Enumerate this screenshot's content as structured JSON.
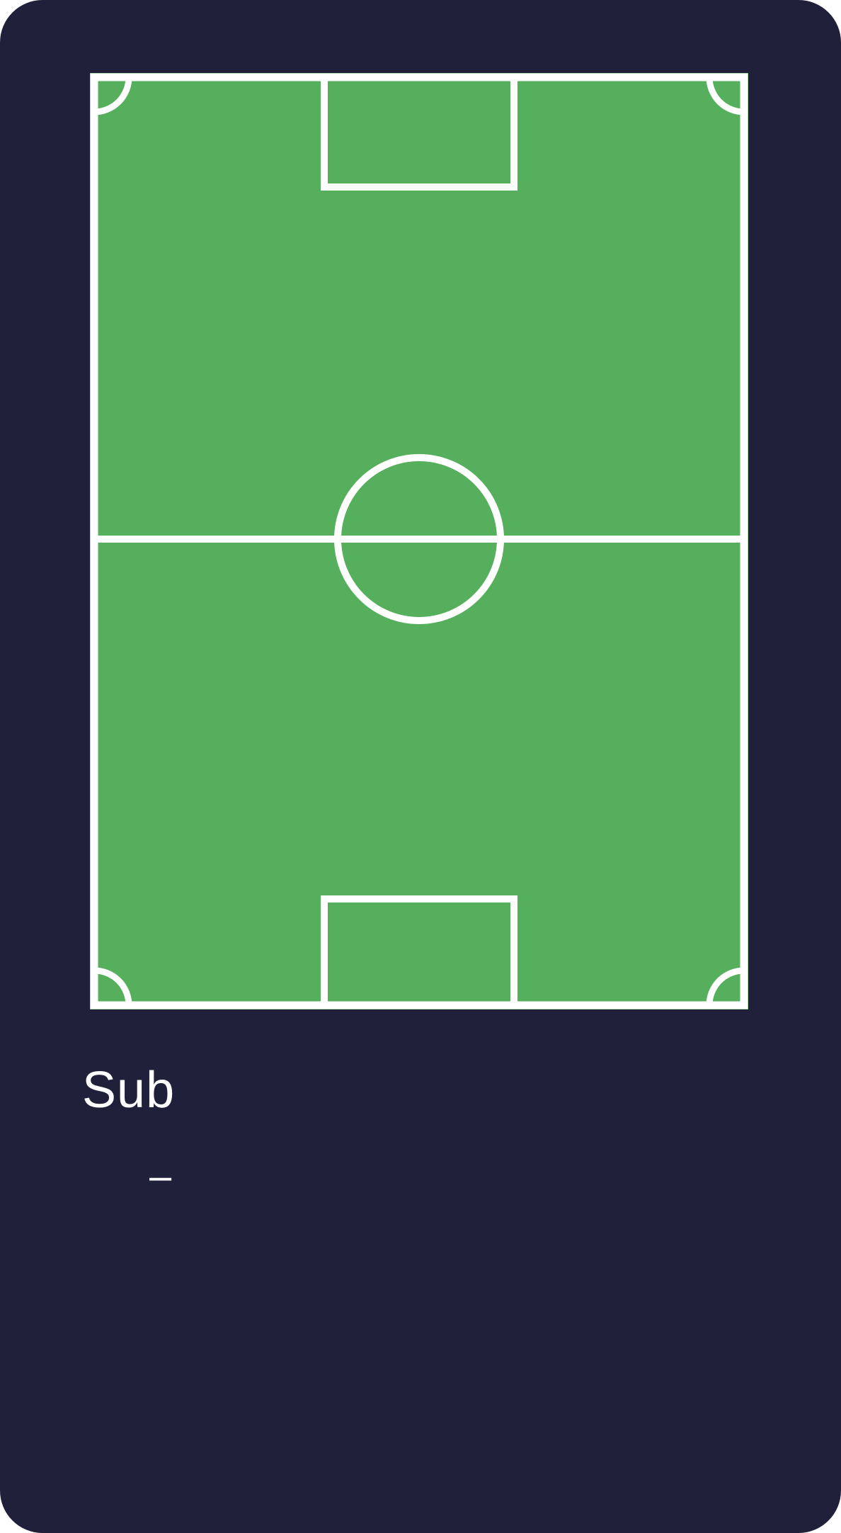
{
  "theme": {
    "background": "#21203b",
    "pitch_grass": "#55af5d",
    "pitch_lines": "#ffffff",
    "text": "#ffffff"
  },
  "pitch": {
    "icon": "soccer-pitch"
  },
  "subs": {
    "title": "Sub",
    "entries": [
      {
        "text": "–"
      }
    ]
  }
}
